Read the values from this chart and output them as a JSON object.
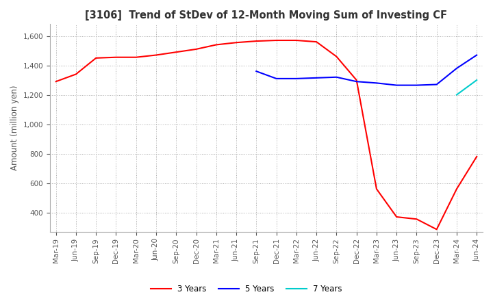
{
  "title": "[3106]  Trend of StDev of 12-Month Moving Sum of Investing CF",
  "ylabel": "Amount (million yen)",
  "ylim": [
    270,
    1680
  ],
  "yticks": [
    400,
    600,
    800,
    1000,
    1200,
    1400,
    1600
  ],
  "line_colors": {
    "3 Years": "#FF0000",
    "5 Years": "#0000FF",
    "7 Years": "#00CCCC",
    "10 Years": "#008000"
  },
  "x_labels": [
    "Mar-19",
    "Jun-19",
    "Sep-19",
    "Dec-19",
    "Mar-20",
    "Jun-20",
    "Sep-20",
    "Dec-20",
    "Mar-21",
    "Jun-21",
    "Sep-21",
    "Dec-21",
    "Mar-22",
    "Jun-22",
    "Sep-22",
    "Dec-22",
    "Mar-23",
    "Jun-23",
    "Sep-23",
    "Dec-23",
    "Mar-24",
    "Jun-24"
  ],
  "series_3y": [
    1290,
    1340,
    1450,
    1455,
    1455,
    1470,
    1490,
    1510,
    1540,
    1555,
    1565,
    1570,
    1570,
    1560,
    1460,
    1300,
    560,
    370,
    355,
    285,
    560,
    780
  ],
  "series_5y": [
    null,
    null,
    null,
    null,
    null,
    null,
    null,
    null,
    null,
    null,
    1360,
    1310,
    1310,
    1315,
    1320,
    1290,
    1280,
    1265,
    1265,
    1270,
    1380,
    1470
  ],
  "series_7y": [
    null,
    null,
    null,
    null,
    null,
    null,
    null,
    null,
    null,
    null,
    null,
    null,
    null,
    null,
    null,
    null,
    null,
    null,
    null,
    null,
    1200,
    1300
  ],
  "series_10y": [
    null,
    null,
    null,
    null,
    null,
    null,
    null,
    null,
    null,
    null,
    null,
    null,
    null,
    null,
    null,
    null,
    null,
    null,
    null,
    null,
    null,
    null
  ],
  "background_color": "#ffffff",
  "grid_color": "#aaaaaa"
}
